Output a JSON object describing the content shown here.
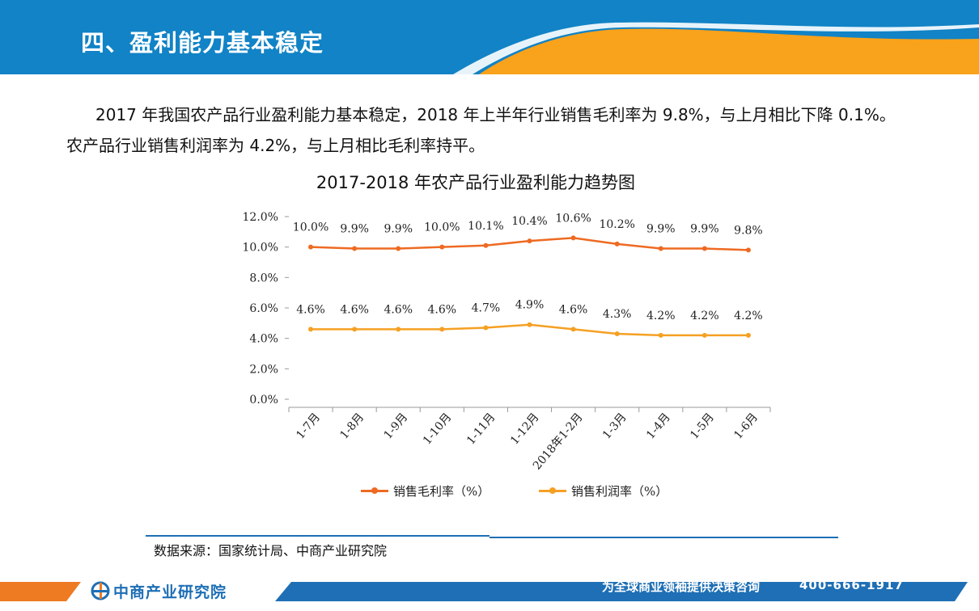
{
  "header": {
    "title": "四、盈利能力基本稳定",
    "colors": {
      "blue": "#1183c6",
      "orange": "#f9a21b"
    }
  },
  "intro": {
    "text": "2017 年我国农产品行业盈利能力基本稳定，2018 年上半年行业销售毛利率为 9.8%，与上月相比下降 0.1%。农产品行业销售利润率为 4.2%，与上月相比毛利率持平。"
  },
  "chart_data": {
    "type": "line",
    "title": "2017-2018 年农产品行业盈利能力趋势图",
    "categories": [
      "1-7月",
      "1-8月",
      "1-9月",
      "1-10月",
      "1-11月",
      "1-12月",
      "2018年1-2月",
      "1-3月",
      "1-4月",
      "1-5月",
      "1-6月"
    ],
    "yticks": [
      "0.0%",
      "2.0%",
      "4.0%",
      "6.0%",
      "8.0%",
      "10.0%",
      "12.0%"
    ],
    "ylim": [
      0,
      12
    ],
    "series": [
      {
        "name": "销售毛利率（%）",
        "color": "#ee6a22",
        "values": [
          10.0,
          9.9,
          9.9,
          10.0,
          10.1,
          10.4,
          10.6,
          10.2,
          9.9,
          9.9,
          9.8
        ],
        "labels": [
          "10.0%",
          "9.9%",
          "9.9%",
          "10.0%",
          "10.1%",
          "10.4%",
          "10.6%",
          "10.2%",
          "9.9%",
          "9.9%",
          "9.8%"
        ]
      },
      {
        "name": "销售利润率（%）",
        "color": "#f5a023",
        "values": [
          4.6,
          4.6,
          4.6,
          4.6,
          4.7,
          4.9,
          4.6,
          4.3,
          4.2,
          4.2,
          4.2
        ],
        "labels": [
          "4.6%",
          "4.6%",
          "4.6%",
          "4.6%",
          "4.7%",
          "4.9%",
          "4.6%",
          "4.3%",
          "4.2%",
          "4.2%",
          "4.2%"
        ]
      }
    ],
    "legend": "bottom",
    "grid": false
  },
  "source": {
    "text": "数据来源：国家统计局、中商产业研究院"
  },
  "footer": {
    "brand": "中商产业研究院",
    "slogan": "为全球商业领袖提供决策咨询",
    "phone": "400-666-1917"
  }
}
